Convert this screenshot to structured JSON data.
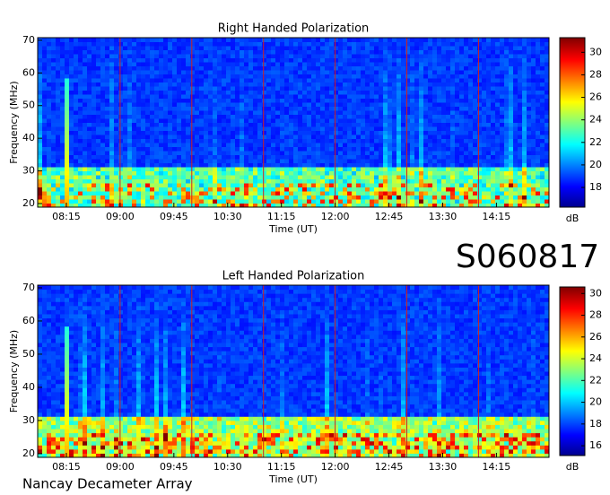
{
  "label": "S060817",
  "credit": "Nancay Decameter Array",
  "chart_data": [
    {
      "type": "spectrogram",
      "title": "Right Handed Polarization",
      "xlabel": "Time (UT)",
      "ylabel": "Frequency (MHz)",
      "xlim": [
        471,
        899
      ],
      "xticks": [
        {
          "value": 495,
          "label": "08:15"
        },
        {
          "value": 540,
          "label": "09:00"
        },
        {
          "value": 585,
          "label": "09:45"
        },
        {
          "value": 630,
          "label": "10:30"
        },
        {
          "value": 675,
          "label": "11:15"
        },
        {
          "value": 720,
          "label": "12:00"
        },
        {
          "value": 765,
          "label": "12:45"
        },
        {
          "value": 810,
          "label": "13:30"
        },
        {
          "value": 855,
          "label": "14:15"
        }
      ],
      "vlines": [
        540,
        600,
        660,
        720,
        780,
        840
      ],
      "ylim": [
        18.9,
        70.8
      ],
      "yticks": [
        20,
        30,
        40,
        50,
        60,
        70
      ],
      "colorbar_label": "dB",
      "clim": [
        16.25,
        31.3
      ],
      "cticks": [
        18,
        20,
        22,
        24,
        26,
        28,
        30
      ]
    },
    {
      "type": "spectrogram",
      "title": "Left Handed Polarization",
      "xlabel": "Time (UT)",
      "ylabel": "Frequency (MHz)",
      "xlim": [
        471,
        899
      ],
      "xticks": [
        {
          "value": 495,
          "label": "08:15"
        },
        {
          "value": 540,
          "label": "09:00"
        },
        {
          "value": 585,
          "label": "09:45"
        },
        {
          "value": 630,
          "label": "10:30"
        },
        {
          "value": 675,
          "label": "11:15"
        },
        {
          "value": 720,
          "label": "12:00"
        },
        {
          "value": 765,
          "label": "12:45"
        },
        {
          "value": 810,
          "label": "13:30"
        },
        {
          "value": 855,
          "label": "14:15"
        }
      ],
      "vlines": [
        540,
        600,
        660,
        720,
        780,
        840
      ],
      "ylim": [
        18.9,
        70.8
      ],
      "yticks": [
        20,
        30,
        40,
        50,
        60,
        70
      ],
      "colorbar_label": "dB",
      "clim": [
        15.1,
        30.6
      ],
      "cticks": [
        16,
        18,
        20,
        22,
        24,
        26,
        28,
        30
      ]
    }
  ]
}
